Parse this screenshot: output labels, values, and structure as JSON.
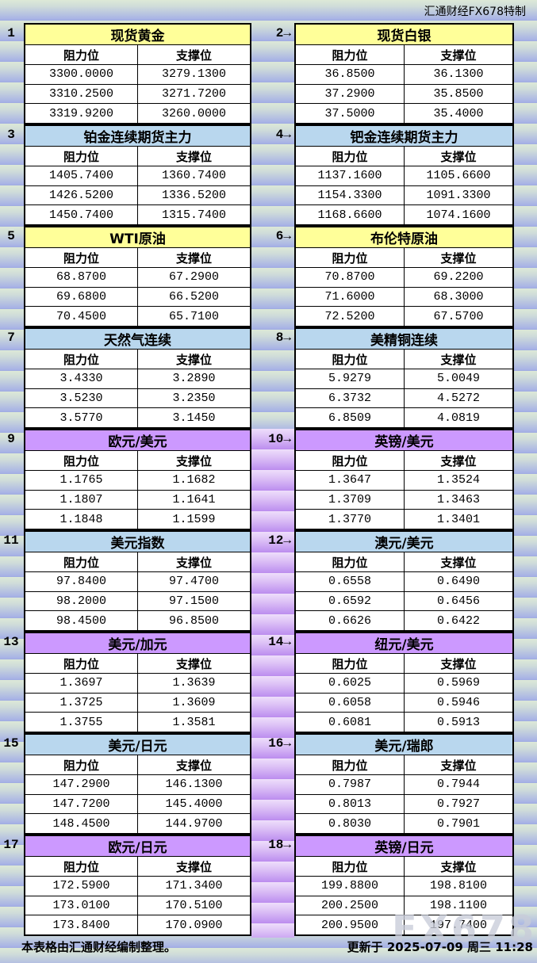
{
  "header": {
    "brand": "汇通财经FX678特制"
  },
  "column_headers": {
    "resistance": "阻力位",
    "support": "支撑位"
  },
  "colors": {
    "gold": "#ffff99",
    "blue": "#b9d7ee",
    "purple": "#cc99ff"
  },
  "panels": [
    {
      "label": "1",
      "title": "现货黄金",
      "color": "gold",
      "rows": [
        [
          "3300.0000",
          "3279.1300"
        ],
        [
          "3310.2500",
          "3271.7200"
        ],
        [
          "3319.9200",
          "3260.0000"
        ]
      ]
    },
    {
      "label": "2→",
      "title": "现货白银",
      "color": "gold",
      "rows": [
        [
          "36.8500",
          "36.1300"
        ],
        [
          "37.2900",
          "35.8500"
        ],
        [
          "37.5000",
          "35.4000"
        ]
      ]
    },
    {
      "label": "3",
      "title": "铂金连续期货主力",
      "color": "blue",
      "rows": [
        [
          "1405.7400",
          "1360.7400"
        ],
        [
          "1426.5200",
          "1336.5200"
        ],
        [
          "1450.7400",
          "1315.7400"
        ]
      ]
    },
    {
      "label": "4→",
      "title": "钯金连续期货主力",
      "color": "blue",
      "rows": [
        [
          "1137.1600",
          "1105.6600"
        ],
        [
          "1154.3300",
          "1091.3300"
        ],
        [
          "1168.6600",
          "1074.1600"
        ]
      ]
    },
    {
      "label": "5",
      "title": "WTI原油",
      "color": "gold",
      "rows": [
        [
          "68.8700",
          "67.2900"
        ],
        [
          "69.6800",
          "66.5200"
        ],
        [
          "70.4500",
          "65.7100"
        ]
      ]
    },
    {
      "label": "6→",
      "title": "布伦特原油",
      "color": "gold",
      "rows": [
        [
          "70.8700",
          "69.2200"
        ],
        [
          "71.6000",
          "68.3000"
        ],
        [
          "72.5200",
          "67.5700"
        ]
      ]
    },
    {
      "label": "7",
      "title": "天然气连续",
      "color": "blue",
      "rows": [
        [
          "3.4330",
          "3.2890"
        ],
        [
          "3.5230",
          "3.2350"
        ],
        [
          "3.5770",
          "3.1450"
        ]
      ]
    },
    {
      "label": "8→",
      "title": "美精铜连续",
      "color": "blue",
      "rows": [
        [
          "5.9279",
          "5.0049"
        ],
        [
          "6.3732",
          "4.5272"
        ],
        [
          "6.8509",
          "4.0819"
        ]
      ]
    },
    {
      "label": "9",
      "title": "欧元/美元",
      "color": "purple",
      "rows": [
        [
          "1.1765",
          "1.1682"
        ],
        [
          "1.1807",
          "1.1641"
        ],
        [
          "1.1848",
          "1.1599"
        ]
      ]
    },
    {
      "label": "10→",
      "title": "英镑/美元",
      "color": "purple",
      "rows": [
        [
          "1.3647",
          "1.3524"
        ],
        [
          "1.3709",
          "1.3463"
        ],
        [
          "1.3770",
          "1.3401"
        ]
      ]
    },
    {
      "label": "11",
      "title": "美元指数",
      "color": "blue",
      "selected_row": 1,
      "rows": [
        [
          "97.8400",
          "97.4700"
        ],
        [
          "98.2000",
          "97.1500"
        ],
        [
          "98.4500",
          "96.8500"
        ]
      ]
    },
    {
      "label": "12→",
      "title": "澳元/美元",
      "color": "blue",
      "rows": [
        [
          "0.6558",
          "0.6490"
        ],
        [
          "0.6592",
          "0.6456"
        ],
        [
          "0.6626",
          "0.6422"
        ]
      ]
    },
    {
      "label": "13",
      "title": "美元/加元",
      "color": "purple",
      "rows": [
        [
          "1.3697",
          "1.3639"
        ],
        [
          "1.3725",
          "1.3609"
        ],
        [
          "1.3755",
          "1.3581"
        ]
      ]
    },
    {
      "label": "14→",
      "title": "纽元/美元",
      "color": "purple",
      "rows": [
        [
          "0.6025",
          "0.5969"
        ],
        [
          "0.6058",
          "0.5946"
        ],
        [
          "0.6081",
          "0.5913"
        ]
      ]
    },
    {
      "label": "15",
      "title": "美元/日元",
      "color": "blue",
      "rows": [
        [
          "147.2900",
          "146.1300"
        ],
        [
          "147.7200",
          "145.4000"
        ],
        [
          "148.4500",
          "144.9700"
        ]
      ]
    },
    {
      "label": "16→",
      "title": "美元/瑞郎",
      "color": "blue",
      "rows": [
        [
          "0.7987",
          "0.7944"
        ],
        [
          "0.8013",
          "0.7927"
        ],
        [
          "0.8030",
          "0.7901"
        ]
      ]
    },
    {
      "label": "17",
      "title": "欧元/日元",
      "color": "purple",
      "rows": [
        [
          "172.5900",
          "171.3400"
        ],
        [
          "173.0100",
          "170.5100"
        ],
        [
          "173.8400",
          "170.0900"
        ]
      ]
    },
    {
      "label": "18→",
      "title": "英镑/日元",
      "color": "purple",
      "rows": [
        [
          "199.8800",
          "198.8100"
        ],
        [
          "200.2500",
          "198.1100"
        ],
        [
          "200.9500",
          "197.7400"
        ]
      ]
    }
  ],
  "footer": {
    "left": "本表格由汇通财经编制整理。",
    "right": "更新于 2025-07-09 周三 11:28"
  },
  "watermark": "FX678"
}
